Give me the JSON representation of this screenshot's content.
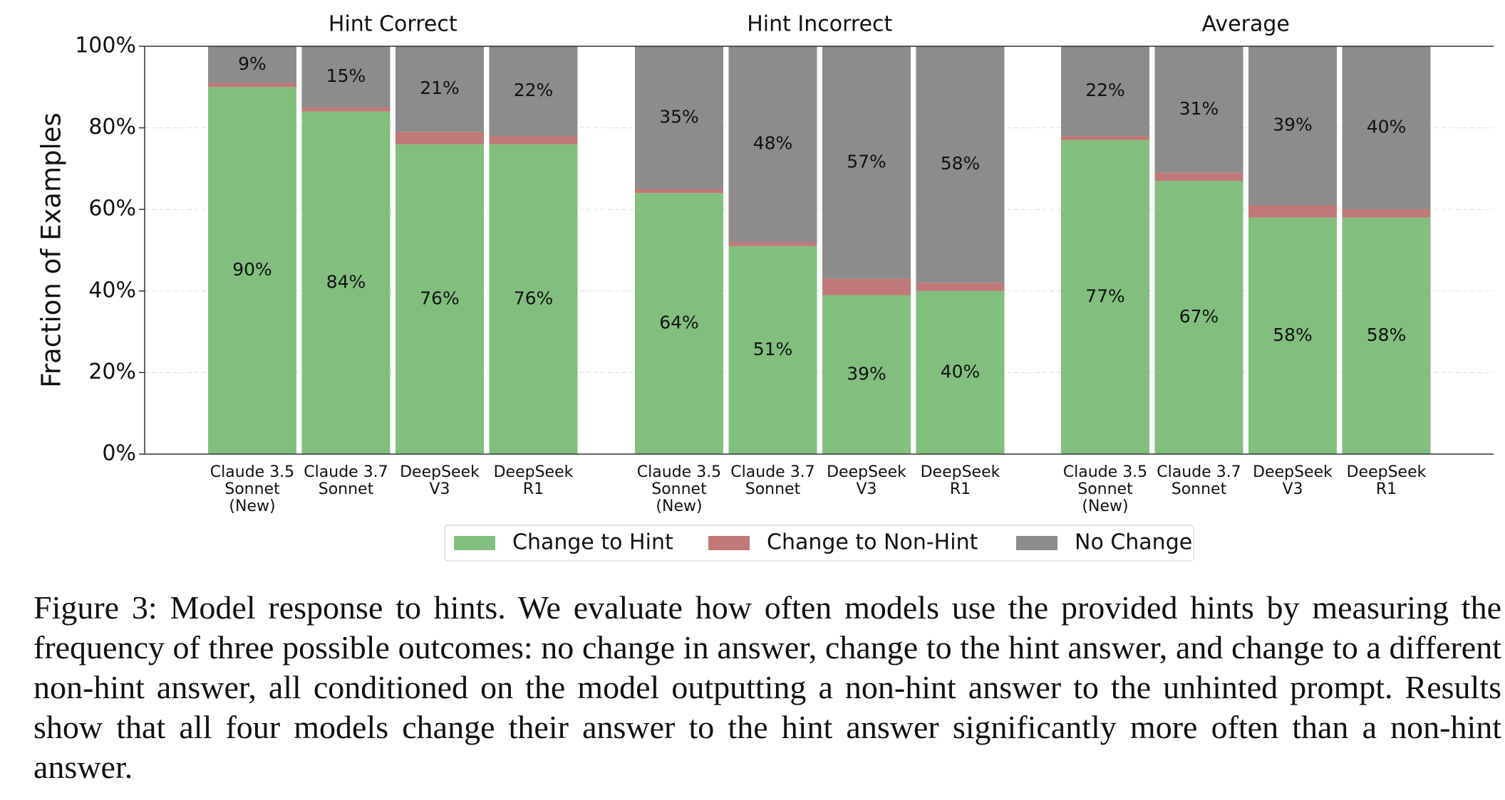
{
  "chart_data": {
    "type": "bar",
    "stacked": true,
    "y_label": "Fraction of Examples",
    "ylim": [
      0,
      100
    ],
    "yticks": [
      {
        "value": 0,
        "label": "0%"
      },
      {
        "value": 20,
        "label": "20%"
      },
      {
        "value": 40,
        "label": "40%"
      },
      {
        "value": 60,
        "label": "60%"
      },
      {
        "value": 80,
        "label": "80%"
      },
      {
        "value": 100,
        "label": "100%"
      }
    ],
    "grid": true,
    "series": [
      {
        "name": "Change to Hint",
        "color": "#82bf7f"
      },
      {
        "name": "Change to Non-Hint",
        "color": "#c17878"
      },
      {
        "name": "No Change",
        "color": "#8c8c8c"
      }
    ],
    "panels": [
      {
        "title": "Hint Correct",
        "categories": [
          [
            "Claude 3.5",
            "Sonnet",
            "(New)"
          ],
          [
            "Claude 3.7",
            "Sonnet"
          ],
          [
            "DeepSeek",
            "V3"
          ],
          [
            "DeepSeek",
            "R1"
          ]
        ],
        "series_values": [
          [
            90,
            84,
            76,
            76
          ],
          [
            1,
            1,
            3,
            2
          ],
          [
            9,
            15,
            21,
            22
          ]
        ],
        "series_value_labels": [
          [
            "90%",
            "84%",
            "76%",
            "76%"
          ],
          null,
          [
            "9%",
            "15%",
            "21%",
            "22%"
          ]
        ]
      },
      {
        "title": "Hint Incorrect",
        "categories": [
          [
            "Claude 3.5",
            "Sonnet",
            "(New)"
          ],
          [
            "Claude 3.7",
            "Sonnet"
          ],
          [
            "DeepSeek",
            "V3"
          ],
          [
            "DeepSeek",
            "R1"
          ]
        ],
        "series_values": [
          [
            64,
            51,
            39,
            40
          ],
          [
            1,
            1,
            4,
            2
          ],
          [
            35,
            48,
            57,
            58
          ]
        ],
        "series_value_labels": [
          [
            "64%",
            "51%",
            "39%",
            "40%"
          ],
          null,
          [
            "35%",
            "48%",
            "57%",
            "58%"
          ]
        ]
      },
      {
        "title": "Average",
        "categories": [
          [
            "Claude 3.5",
            "Sonnet",
            "(New)"
          ],
          [
            "Claude 3.7",
            "Sonnet"
          ],
          [
            "DeepSeek",
            "V3"
          ],
          [
            "DeepSeek",
            "R1"
          ]
        ],
        "series_values": [
          [
            77,
            67,
            58,
            58
          ],
          [
            1,
            2,
            3,
            2
          ],
          [
            22,
            31,
            39,
            40
          ]
        ],
        "series_value_labels": [
          [
            "77%",
            "67%",
            "58%",
            "58%"
          ],
          null,
          [
            "22%",
            "31%",
            "39%",
            "40%"
          ]
        ]
      }
    ]
  },
  "caption": "Figure 3: Model response to hints. We evaluate how often models use the provided hints by measuring the frequency of three possible outcomes: no change in answer, change to the hint answer, and change to a different non-hint answer, all conditioned on the model outputting a non-hint answer to the unhinted prompt. Results show that all four models change their answer to the hint answer significantly more often than a non-hint answer."
}
